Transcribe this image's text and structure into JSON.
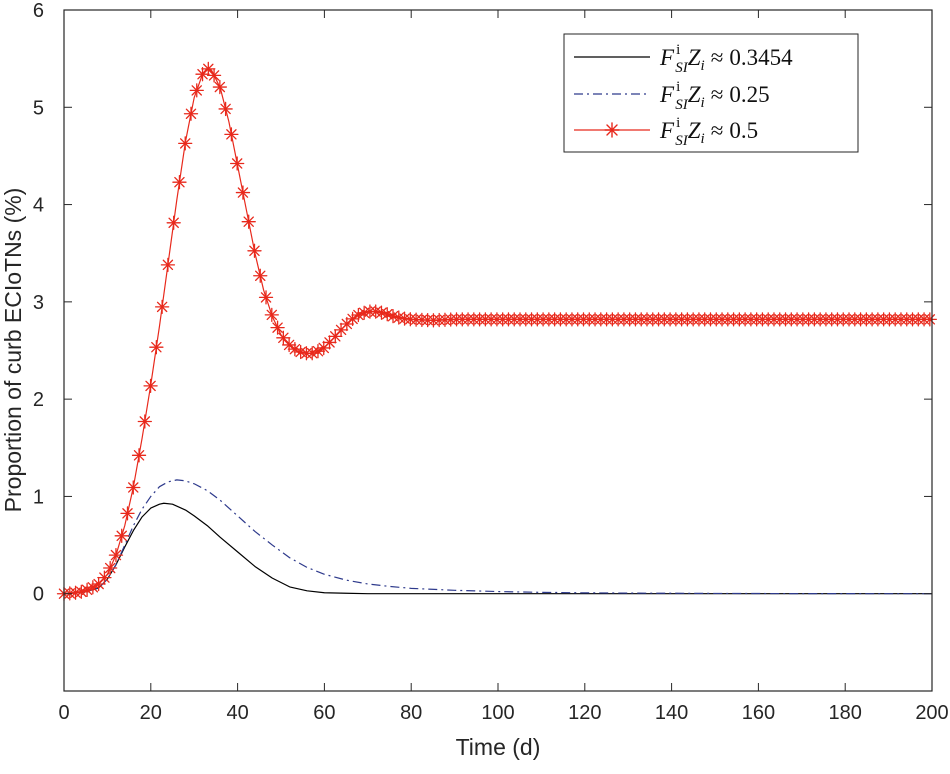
{
  "chart_data": {
    "type": "line",
    "title": "",
    "xlabel": "Time (d)",
    "ylabel": "Proportion of curb ECIoTNs (%)",
    "xlim": [
      0,
      200
    ],
    "ylim": [
      -1,
      6
    ],
    "xticks": [
      0,
      20,
      40,
      60,
      80,
      100,
      120,
      140,
      160,
      180,
      200
    ],
    "xtick_labels": [
      "0",
      "20",
      "40",
      "60",
      "80",
      "100",
      "120",
      "140",
      "160",
      "180",
      "200"
    ],
    "yticks": [
      0,
      1,
      2,
      3,
      4,
      5,
      6
    ],
    "ytick_labels": [
      "0",
      "1",
      "2",
      "3",
      "4",
      "5",
      "6"
    ],
    "grid": false,
    "legend_position": "top-right",
    "series": [
      {
        "name": "F_SI^i Z_i ≈ 0.3454",
        "legend": {
          "F": "F",
          "sup": "i",
          "sub": "SI",
          "Z": "Z",
          "zsub": "i",
          "approx": "≈",
          "value": "0.3454"
        },
        "color": "#000000",
        "style": "solid",
        "marker": "none",
        "x": [
          0,
          5,
          8,
          10,
          12,
          14,
          16,
          18,
          20,
          22,
          23,
          25,
          28,
          30,
          33,
          36,
          40,
          44,
          48,
          52,
          56,
          60,
          65,
          70,
          80,
          100,
          150,
          200
        ],
        "y": [
          0,
          0.02,
          0.06,
          0.15,
          0.3,
          0.48,
          0.65,
          0.79,
          0.88,
          0.92,
          0.93,
          0.92,
          0.86,
          0.8,
          0.7,
          0.58,
          0.43,
          0.28,
          0.16,
          0.07,
          0.03,
          0.01,
          0.005,
          0,
          0,
          0,
          0,
          0
        ]
      },
      {
        "name": "F_SI^i Z_i ≈ 0.25",
        "legend": {
          "F": "F",
          "sup": "i",
          "sub": "SI",
          "Z": "Z",
          "zsub": "i",
          "approx": "≈",
          "value": "0.25"
        },
        "color": "#2e3a8c",
        "style": "dashdot",
        "marker": "none",
        "x": [
          0,
          5,
          8,
          10,
          12,
          14,
          16,
          18,
          20,
          22,
          24,
          26,
          28,
          30,
          33,
          36,
          40,
          44,
          48,
          52,
          56,
          60,
          65,
          70,
          75,
          80,
          90,
          100,
          110,
          120,
          130,
          150,
          170,
          200
        ],
        "y": [
          0,
          0.02,
          0.06,
          0.15,
          0.3,
          0.5,
          0.7,
          0.87,
          1.0,
          1.1,
          1.15,
          1.17,
          1.16,
          1.13,
          1.06,
          0.96,
          0.8,
          0.64,
          0.5,
          0.37,
          0.27,
          0.2,
          0.14,
          0.1,
          0.075,
          0.055,
          0.035,
          0.022,
          0.014,
          0.009,
          0.006,
          0.003,
          0.001,
          0
        ]
      },
      {
        "name": "F_SI^i Z_i ≈ 0.5",
        "legend": {
          "F": "F",
          "sup": "i",
          "sub": "SI",
          "Z": "Z",
          "zsub": "i",
          "approx": "≈",
          "value": "0.5"
        },
        "color": "#e8291c",
        "style": "solid",
        "marker": "star",
        "x": [
          0,
          2,
          4,
          6,
          8,
          10,
          12,
          14,
          16,
          18,
          20,
          22,
          24,
          26,
          28,
          30,
          32,
          33,
          34,
          36,
          38,
          40,
          42,
          44,
          46,
          48,
          50,
          52,
          54,
          56,
          57,
          58,
          60,
          62,
          64,
          66,
          68,
          70,
          72,
          74,
          76,
          78,
          80,
          85,
          90,
          100,
          120,
          140,
          160,
          180,
          200
        ],
        "y": [
          0,
          0.005,
          0.02,
          0.05,
          0.1,
          0.2,
          0.4,
          0.7,
          1.1,
          1.6,
          2.15,
          2.75,
          3.4,
          4.05,
          4.65,
          5.1,
          5.35,
          5.4,
          5.38,
          5.2,
          4.85,
          4.4,
          3.95,
          3.5,
          3.12,
          2.85,
          2.66,
          2.55,
          2.49,
          2.47,
          2.47,
          2.48,
          2.53,
          2.62,
          2.72,
          2.81,
          2.87,
          2.9,
          2.9,
          2.88,
          2.85,
          2.83,
          2.82,
          2.81,
          2.82,
          2.82,
          2.82,
          2.82,
          2.82,
          2.82,
          2.82
        ]
      }
    ]
  }
}
